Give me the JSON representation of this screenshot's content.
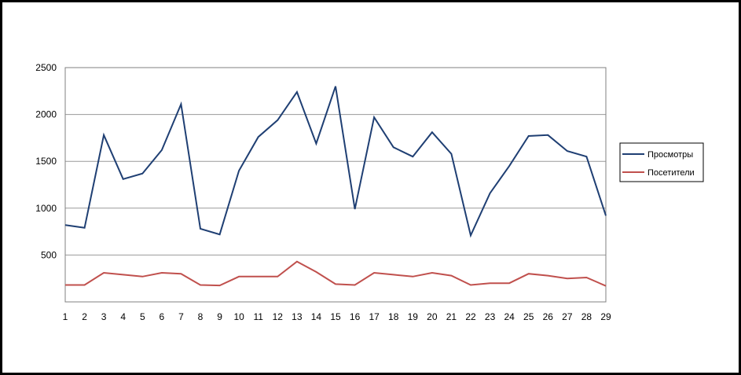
{
  "chart_data": {
    "type": "line",
    "title": "",
    "xlabel": "",
    "ylabel": "",
    "x": [
      1,
      2,
      3,
      4,
      5,
      6,
      7,
      8,
      9,
      10,
      11,
      12,
      13,
      14,
      15,
      16,
      17,
      18,
      19,
      20,
      21,
      22,
      23,
      24,
      25,
      26,
      27,
      28,
      29
    ],
    "ylim": [
      0,
      2500
    ],
    "y_ticks": [
      500,
      1000,
      1500,
      2000,
      2500
    ],
    "grid": true,
    "legend_position": "right",
    "series": [
      {
        "name": "Просмотры",
        "color": "#1F3F73",
        "values": [
          820,
          790,
          1780,
          1310,
          1370,
          1620,
          2110,
          780,
          720,
          1400,
          1760,
          1940,
          2240,
          1690,
          2300,
          990,
          1970,
          1650,
          1550,
          1810,
          1580,
          710,
          1160,
          1450,
          1770,
          1780,
          1610,
          1550,
          920
        ]
      },
      {
        "name": "Посетители",
        "color": "#C0504D",
        "values": [
          180,
          180,
          310,
          290,
          270,
          310,
          300,
          180,
          175,
          270,
          270,
          270,
          430,
          320,
          190,
          180,
          310,
          290,
          270,
          310,
          280,
          180,
          200,
          200,
          300,
          280,
          250,
          260,
          170
        ]
      }
    ]
  }
}
